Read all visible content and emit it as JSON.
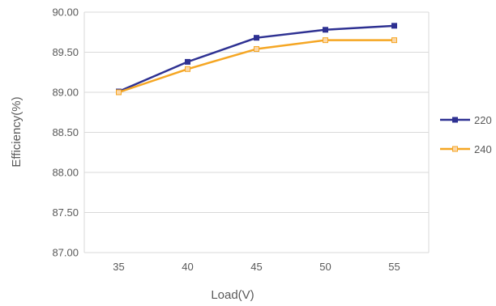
{
  "chart_data": {
    "type": "line",
    "title": "",
    "xlabel": "Load(V)",
    "ylabel": "Efficiency(%)",
    "categories": [
      "35",
      "40",
      "45",
      "50",
      "55"
    ],
    "ylim": [
      87.0,
      90.0
    ],
    "yticks": [
      "87.00",
      "87.50",
      "88.00",
      "88.50",
      "89.00",
      "89.50",
      "90.00"
    ],
    "grid": true,
    "legend_position": "right",
    "series": [
      {
        "name": "220",
        "color": "#2e3192",
        "marker": "square-filled",
        "values": [
          89.01,
          89.38,
          89.68,
          89.78,
          89.83
        ]
      },
      {
        "name": "240",
        "color": "#f5a623",
        "marker": "square-hollow",
        "values": [
          89.0,
          89.29,
          89.54,
          89.65,
          89.65
        ]
      }
    ]
  }
}
